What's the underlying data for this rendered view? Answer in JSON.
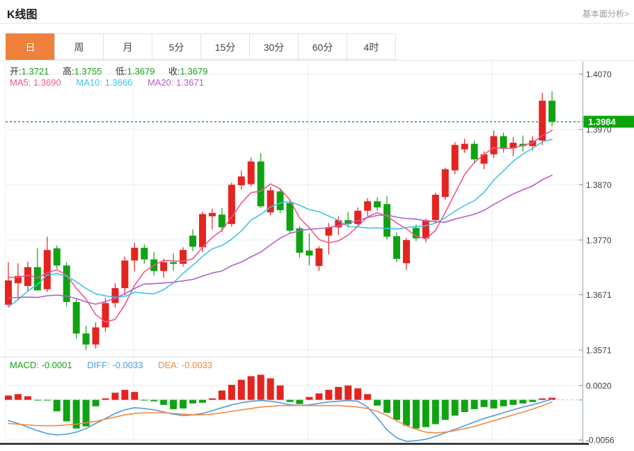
{
  "header": {
    "title": "K线图",
    "link": "基本面分析>"
  },
  "tabs": {
    "items": [
      {
        "label": "日",
        "active": true
      },
      {
        "label": "周"
      },
      {
        "label": "月"
      },
      {
        "label": "5分"
      },
      {
        "label": "15分"
      },
      {
        "label": "30分"
      },
      {
        "label": "60分"
      },
      {
        "label": "4时"
      }
    ]
  },
  "readout": {
    "ohlc": [
      {
        "label": "开:",
        "value": "1.3721"
      },
      {
        "label": "高:",
        "value": "1.3755"
      },
      {
        "label": "低:",
        "value": "1.3679"
      },
      {
        "label": "收:",
        "value": "1.3679"
      }
    ],
    "ma": [
      {
        "label": "MA5:",
        "value": "1.3690"
      },
      {
        "label": "MA10:",
        "value": "1.3666"
      },
      {
        "label": "MA20:",
        "value": "1.3671"
      }
    ]
  },
  "macd_readout": [
    {
      "label": "MACD:",
      "value": "-0.0001"
    },
    {
      "label": "DIFF:",
      "value": "-0.0033"
    },
    {
      "label": "DEA:",
      "value": "-0.0033"
    }
  ],
  "colors": {
    "up": "#e32420",
    "down": "#10a212",
    "ma5": "#f1568c",
    "ma10": "#3fc5e5",
    "ma20": "#b161c9",
    "diff": "#4f9cdb",
    "dea": "#f28a3d",
    "price_tag": "#09a509",
    "price_line": "#27a827",
    "tab_active": "#f0813d",
    "grid": "#e9eef3",
    "axis": "#9aa0a6",
    "axis_label": "#3c3c3c",
    "zero_line": "#a9d7e9",
    "bottom_bar": "#161616"
  },
  "chart_data": {
    "type": "candlestick",
    "title": "K线图",
    "current_price": 1.3984,
    "current_price_label": "1.3984",
    "price_axis_ticks": [
      {
        "label": "1.4070",
        "value": 1.407
      },
      {
        "label": "1.3970",
        "value": 1.397
      },
      {
        "label": "1.3870",
        "value": 1.387
      },
      {
        "label": "1.3770",
        "value": 1.377
      },
      {
        "label": "1.3671",
        "value": 1.3671
      },
      {
        "label": "1.3571",
        "value": 1.3571
      }
    ],
    "candles_ohlc": [
      [
        1.3653,
        1.373,
        1.3648,
        1.3697
      ],
      [
        1.3692,
        1.3728,
        1.3661,
        1.3705
      ],
      [
        1.3687,
        1.3731,
        1.3677,
        1.3721
      ],
      [
        1.3721,
        1.3755,
        1.3679,
        1.3679
      ],
      [
        1.3681,
        1.3776,
        1.3676,
        1.3752
      ],
      [
        1.3755,
        1.376,
        1.3718,
        1.3724
      ],
      [
        1.3724,
        1.373,
        1.365,
        1.3658
      ],
      [
        1.3658,
        1.3664,
        1.3592,
        1.3601
      ],
      [
        1.3601,
        1.3615,
        1.3571,
        1.3581
      ],
      [
        1.3581,
        1.3621,
        1.3574,
        1.3612
      ],
      [
        1.3612,
        1.3665,
        1.3604,
        1.3656
      ],
      [
        1.3656,
        1.3692,
        1.3648,
        1.3683
      ],
      [
        1.3683,
        1.374,
        1.367,
        1.3733
      ],
      [
        1.3733,
        1.3765,
        1.3714,
        1.3756
      ],
      [
        1.3756,
        1.3762,
        1.3727,
        1.3735
      ],
      [
        1.3735,
        1.3748,
        1.3706,
        1.3714
      ],
      [
        1.3714,
        1.3736,
        1.3702,
        1.373
      ],
      [
        1.373,
        1.3746,
        1.3715,
        1.3727
      ],
      [
        1.3727,
        1.3757,
        1.3722,
        1.3752
      ],
      [
        1.3778,
        1.3789,
        1.375,
        1.3758
      ],
      [
        1.3757,
        1.3821,
        1.3748,
        1.3817
      ],
      [
        1.3813,
        1.3827,
        1.3789,
        1.3819
      ],
      [
        1.3816,
        1.3828,
        1.3785,
        1.3793
      ],
      [
        1.3799,
        1.3874,
        1.3794,
        1.387
      ],
      [
        1.3869,
        1.3896,
        1.3861,
        1.3885
      ],
      [
        1.3871,
        1.3919,
        1.3867,
        1.3912
      ],
      [
        1.3912,
        1.3927,
        1.3828,
        1.3831
      ],
      [
        1.382,
        1.3866,
        1.3815,
        1.386
      ],
      [
        1.3858,
        1.3864,
        1.3819,
        1.3824
      ],
      [
        1.3837,
        1.3843,
        1.3782,
        1.3787
      ],
      [
        1.3791,
        1.3795,
        1.3738,
        1.3747
      ],
      [
        1.3751,
        1.3782,
        1.3724,
        1.3742
      ],
      [
        1.3723,
        1.3759,
        1.3714,
        1.3755
      ],
      [
        1.3778,
        1.3801,
        1.3744,
        1.3793
      ],
      [
        1.3793,
        1.3813,
        1.3779,
        1.3806
      ],
      [
        1.3806,
        1.3821,
        1.3793,
        1.3799
      ],
      [
        1.3799,
        1.3829,
        1.3795,
        1.3823
      ],
      [
        1.3823,
        1.3846,
        1.3814,
        1.384
      ],
      [
        1.384,
        1.3847,
        1.3823,
        1.3829
      ],
      [
        1.3835,
        1.3849,
        1.3771,
        1.3776
      ],
      [
        1.3777,
        1.3784,
        1.373,
        1.3736
      ],
      [
        1.3728,
        1.3774,
        1.3716,
        1.377
      ],
      [
        1.3792,
        1.3798,
        1.3768,
        1.3773
      ],
      [
        1.3773,
        1.3809,
        1.3766,
        1.3806
      ],
      [
        1.3806,
        1.3856,
        1.38,
        1.3852
      ],
      [
        1.3848,
        1.3901,
        1.3843,
        1.3898
      ],
      [
        1.3896,
        1.3947,
        1.3889,
        1.3942
      ],
      [
        1.3934,
        1.3953,
        1.3928,
        1.3944
      ],
      [
        1.3944,
        1.395,
        1.3908,
        1.3916
      ],
      [
        1.3908,
        1.393,
        1.3898,
        1.3925
      ],
      [
        1.3925,
        1.3968,
        1.3918,
        1.3958
      ],
      [
        1.3958,
        1.3964,
        1.3928,
        1.3936
      ],
      [
        1.3936,
        1.3956,
        1.3922,
        1.3946
      ],
      [
        1.3944,
        1.3959,
        1.393,
        1.394
      ],
      [
        1.394,
        1.3958,
        1.3932,
        1.395
      ],
      [
        1.395,
        1.4036,
        1.3942,
        1.4022
      ],
      [
        1.4022,
        1.4039,
        1.3976,
        1.3984
      ]
    ],
    "ma_periods": [
      5,
      10,
      20
    ],
    "ma_prehistory": [
      1.369,
      1.3695,
      1.37,
      1.3695,
      1.369,
      1.37,
      1.3695,
      1.369,
      1.37,
      1.3695,
      1.356,
      1.3565,
      1.357,
      1.3565,
      1.3575,
      1.37,
      1.3705,
      1.37,
      1.3705,
      1.3705
    ],
    "macd": {
      "axis_ticks": [
        {
          "label": "0.0020",
          "value": 20
        },
        {
          "label": "-0.0056",
          "value": -56
        }
      ],
      "hist_1e4": [
        6,
        8,
        5,
        -1,
        -1,
        -16,
        -30,
        -40,
        -37,
        -9,
        2,
        10,
        14,
        11,
        -1,
        -2,
        -7,
        -13,
        -12,
        -5,
        -4,
        2,
        13,
        21,
        28,
        33,
        35,
        30,
        20,
        -3,
        -6,
        4,
        9,
        14,
        18,
        20,
        16,
        8,
        -8,
        -18,
        -28,
        -36,
        -40,
        -38,
        -34,
        -28,
        -22,
        -17,
        -13,
        -10,
        -12,
        -9,
        -7,
        -5,
        -3,
        2,
        3
      ],
      "diff_1e4": [
        -29,
        -33,
        -38,
        -43,
        -47,
        -49,
        -48,
        -45,
        -40,
        -33,
        -26,
        -19,
        -14,
        -11,
        -12,
        -14,
        -17,
        -20,
        -22,
        -21,
        -19,
        -15,
        -11,
        -7,
        -4,
        -2,
        -1,
        -2,
        -4,
        -7,
        -8,
        -7,
        -5,
        -3,
        -2,
        -1,
        -2,
        -10,
        -25,
        -42,
        -53,
        -58,
        -57,
        -55,
        -51,
        -46,
        -41,
        -36,
        -31,
        -26,
        -22,
        -18,
        -14,
        -10,
        -7,
        -3,
        1
      ],
      "dea_1e4": [
        -33,
        -34,
        -35,
        -36,
        -36,
        -36,
        -35,
        -34,
        -32,
        -30,
        -27,
        -24,
        -21,
        -19,
        -18,
        -18,
        -18,
        -19,
        -20,
        -21,
        -21,
        -20,
        -18,
        -16,
        -14,
        -12,
        -10,
        -9,
        -8,
        -8,
        -8,
        -8,
        -8,
        -8,
        -8,
        -9,
        -10,
        -12,
        -16,
        -22,
        -29,
        -36,
        -41,
        -45,
        -46,
        -45,
        -43,
        -40,
        -37,
        -33,
        -29,
        -25,
        -21,
        -17,
        -13,
        -8,
        -3
      ]
    }
  }
}
